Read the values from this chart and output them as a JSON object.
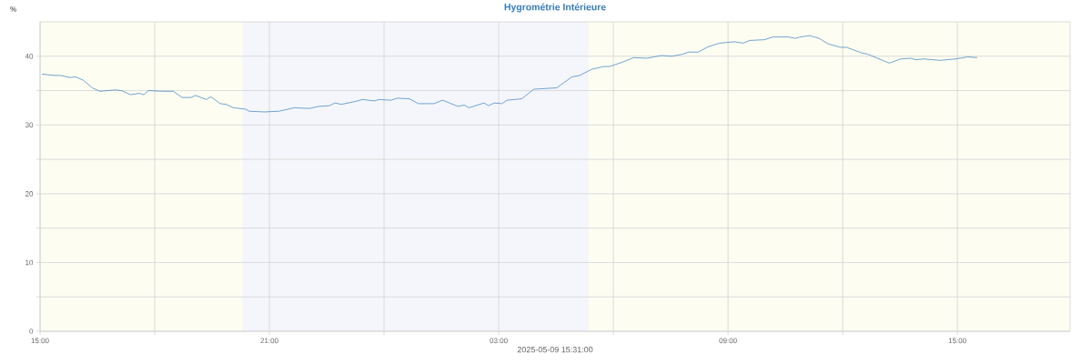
{
  "chart_data": {
    "type": "line",
    "title": "Hygrométrie Intérieure",
    "xlabel": "2025-05-09 15:31:00",
    "ylabel": "%",
    "x": [
      "2025-05-08T15:03",
      "2025-05-08T15:23",
      "2025-05-08T15:32",
      "2025-05-08T15:47",
      "2025-05-08T15:56",
      "2025-05-08T16:08",
      "2025-05-08T16:22",
      "2025-05-08T16:34",
      "2025-05-08T16:58",
      "2025-05-08T17:08",
      "2025-05-08T17:22",
      "2025-05-08T17:36",
      "2025-05-08T17:43",
      "2025-05-08T17:50",
      "2025-05-08T18:14",
      "2025-05-08T18:29",
      "2025-05-08T18:43",
      "2025-05-08T18:57",
      "2025-05-08T19:04",
      "2025-05-08T19:21",
      "2025-05-08T19:28",
      "2025-05-08T19:43",
      "2025-05-08T19:52",
      "2025-05-08T20:04",
      "2025-05-08T20:23",
      "2025-05-08T20:28",
      "2025-05-08T20:52",
      "2025-05-08T21:15",
      "2025-05-08T21:39",
      "2025-05-08T22:03",
      "2025-05-08T22:17",
      "2025-05-08T22:34",
      "2025-05-08T22:43",
      "2025-05-08T22:53",
      "2025-05-08T23:14",
      "2025-05-08T23:26",
      "2025-05-08T23:45",
      "2025-05-08T23:52",
      "2025-05-09T00:11",
      "2025-05-09T00:21",
      "2025-05-09T00:40",
      "2025-05-09T00:54",
      "2025-05-09T01:18",
      "2025-05-09T01:32",
      "2025-05-09T01:56",
      "2025-05-09T02:06",
      "2025-05-09T02:13",
      "2025-05-09T02:37",
      "2025-05-09T02:44",
      "2025-05-09T02:53",
      "2025-05-09T03:05",
      "2025-05-09T03:13",
      "2025-05-09T03:36",
      "2025-05-09T03:55",
      "2025-05-09T04:31",
      "2025-05-09T04:43",
      "2025-05-09T04:55",
      "2025-05-09T05:07",
      "2025-05-09T05:26",
      "2025-05-09T05:45",
      "2025-05-09T05:54",
      "2025-05-09T06:13",
      "2025-05-09T06:32",
      "2025-05-09T06:52",
      "2025-05-09T07:15",
      "2025-05-09T07:32",
      "2025-05-09T07:49",
      "2025-05-09T07:58",
      "2025-05-09T08:13",
      "2025-05-09T08:27",
      "2025-05-09T08:46",
      "2025-05-09T09:10",
      "2025-05-09T09:24",
      "2025-05-09T09:34",
      "2025-05-09T09:57",
      "2025-05-09T10:11",
      "2025-05-09T10:35",
      "2025-05-09T10:45",
      "2025-05-09T10:54",
      "2025-05-09T11:08",
      "2025-05-09T11:23",
      "2025-05-09T11:37",
      "2025-05-09T11:56",
      "2025-05-09T12:06",
      "2025-05-09T12:29",
      "2025-05-09T12:39",
      "2025-05-09T13:13",
      "2025-05-09T13:31",
      "2025-05-09T13:46",
      "2025-05-09T13:55",
      "2025-05-09T14:07",
      "2025-05-09T14:33",
      "2025-05-09T14:57",
      "2025-05-09T15:16",
      "2025-05-09T15:31"
    ],
    "series": [
      {
        "color": "#3a7ebf",
        "values": [
          37.4,
          37.2,
          37.2,
          36.9,
          37.0,
          36.5,
          35.4,
          34.9,
          35.1,
          35.0,
          34.4,
          34.6,
          34.4,
          35.0,
          34.9,
          34.9,
          34.0,
          34.0,
          34.3,
          33.7,
          34.1,
          33.1,
          33.0,
          32.5,
          32.3,
          32.0,
          31.9,
          32.0,
          32.5,
          32.4,
          32.7,
          32.8,
          33.2,
          33.0,
          33.4,
          33.7,
          33.5,
          33.7,
          33.6,
          33.9,
          33.8,
          33.1,
          33.1,
          33.6,
          32.7,
          32.9,
          32.5,
          33.2,
          32.8,
          33.2,
          33.1,
          33.6,
          33.8,
          35.2,
          35.4,
          36.2,
          37.0,
          37.2,
          38.1,
          38.5,
          38.5,
          39.1,
          39.8,
          39.7,
          40.1,
          40.0,
          40.3,
          40.6,
          40.6,
          41.3,
          41.9,
          42.1,
          41.9,
          42.3,
          42.4,
          42.8,
          42.8,
          42.6,
          42.8,
          43.0,
          42.6,
          41.8,
          41.3,
          41.3,
          40.5,
          40.3,
          39.0,
          39.6,
          39.7,
          39.5,
          39.6,
          39.4,
          39.6,
          39.9,
          39.8
        ]
      }
    ],
    "xlim": [
      "2025-05-08T15:00",
      "2025-05-09T17:57"
    ],
    "ylim": [
      0,
      45
    ],
    "xticks": [
      {
        "value": "2025-05-08T15:00",
        "label": "15:00"
      },
      {
        "value": "2025-05-08T18:00",
        "label": null
      },
      {
        "value": "2025-05-08T21:00",
        "label": "21:00"
      },
      {
        "value": "2025-05-09T00:00",
        "label": null
      },
      {
        "value": "2025-05-09T03:00",
        "label": "03:00"
      },
      {
        "value": "2025-05-09T06:00",
        "label": null
      },
      {
        "value": "2025-05-09T09:00",
        "label": "09:00"
      },
      {
        "value": "2025-05-09T12:00",
        "label": null
      },
      {
        "value": "2025-05-09T15:00",
        "label": "15:00"
      }
    ],
    "yticks": [
      0,
      {
        "value": 5,
        "label": null
      },
      10,
      {
        "value": 15,
        "label": null
      },
      20,
      {
        "value": 25,
        "label": null
      },
      30,
      {
        "value": 35,
        "label": null
      },
      40
    ],
    "grid": true,
    "bands": [
      {
        "axis": "x",
        "from": "2025-05-08T15:00",
        "to": "2025-05-08T20:18",
        "color": "#fdfdf2"
      },
      {
        "axis": "x",
        "from": "2025-05-08T20:18",
        "to": "2025-05-09T05:21",
        "color": "#f5f6fc"
      },
      {
        "axis": "x",
        "from": "2025-05-09T05:21",
        "to": "2025-05-09T17:57",
        "color": "#fdfdf2"
      }
    ]
  }
}
